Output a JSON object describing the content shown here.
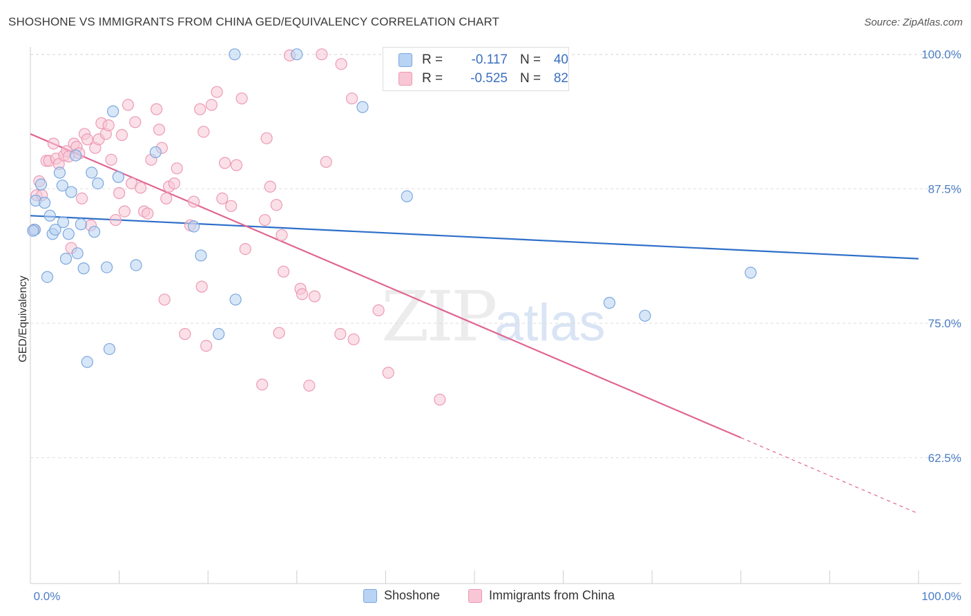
{
  "header": {
    "title": "SHOSHONE VS IMMIGRANTS FROM CHINA GED/EQUIVALENCY CORRELATION CHART",
    "source": "Source: ZipAtlas.com"
  },
  "watermark": {
    "zip": "ZIP",
    "atlas": "atlas"
  },
  "legend": {
    "rows": [
      {
        "r_label": "R =",
        "r_value": "-0.117",
        "n_label": "N =",
        "n_value": "40"
      },
      {
        "r_label": "R =",
        "r_value": "-0.525",
        "n_label": "N =",
        "n_value": "82"
      }
    ]
  },
  "bottom_legend": {
    "series_a": "Shoshone",
    "series_b": "Immigrants from China"
  },
  "colors": {
    "blue_fill": "#b8d3f3",
    "blue_stroke": "#7ba7de",
    "blue_line": "#2e6fc9",
    "pink_fill": "#f8c6d5",
    "pink_stroke": "#ec9ab5",
    "pink_line": "#e06592",
    "grid": "#dddddd",
    "axis_text": "#4a7cc4"
  },
  "chart_data": {
    "type": "scatter",
    "title": "SHOSHONE VS IMMIGRANTS FROM CHINA GED/EQUIVALENCY CORRELATION CHART",
    "xlabel": "",
    "ylabel": "GED/Equivalency",
    "xlim": [
      0,
      100
    ],
    "ylim": [
      50.8,
      101.2
    ],
    "y_ticks": [
      62.5,
      75.0,
      87.5,
      100.0
    ],
    "y_tick_labels": [
      "62.5%",
      "75.0%",
      "87.5%",
      "100.0%"
    ],
    "x_tick_labels": [
      "0.0%",
      "100.0%"
    ],
    "grid": true,
    "legend_position": "top-center",
    "series": [
      {
        "name": "Shoshone",
        "R": -0.117,
        "N": 40,
        "trend": {
          "x": [
            0,
            100
          ],
          "y": [
            85.0,
            81.0
          ],
          "dashed_from": null
        },
        "points": [
          [
            0.5,
            83.7
          ],
          [
            0.6,
            86.4
          ],
          [
            1.2,
            87.9
          ],
          [
            1.6,
            86.2
          ],
          [
            1.9,
            79.3
          ],
          [
            2.2,
            85.0
          ],
          [
            2.5,
            83.3
          ],
          [
            2.8,
            83.7
          ],
          [
            3.3,
            89.0
          ],
          [
            3.6,
            87.8
          ],
          [
            3.7,
            84.4
          ],
          [
            4.0,
            81.0
          ],
          [
            4.3,
            83.3
          ],
          [
            4.6,
            87.2
          ],
          [
            5.1,
            90.6
          ],
          [
            5.3,
            81.5
          ],
          [
            5.7,
            84.2
          ],
          [
            6.0,
            80.1
          ],
          [
            6.4,
            71.4
          ],
          [
            6.9,
            89.0
          ],
          [
            7.2,
            83.5
          ],
          [
            7.6,
            88.0
          ],
          [
            8.6,
            80.2
          ],
          [
            8.9,
            72.6
          ],
          [
            9.3,
            94.7
          ],
          [
            9.9,
            88.6
          ],
          [
            11.9,
            80.4
          ],
          [
            14.1,
            90.9
          ],
          [
            18.4,
            84.0
          ],
          [
            19.2,
            81.3
          ],
          [
            21.2,
            74.0
          ],
          [
            23.0,
            100.0
          ],
          [
            23.1,
            77.2
          ],
          [
            30.0,
            100.0
          ],
          [
            37.4,
            95.1
          ],
          [
            42.4,
            86.8
          ],
          [
            65.2,
            76.9
          ],
          [
            69.2,
            75.7
          ],
          [
            81.1,
            79.7
          ],
          [
            0.3,
            83.6
          ]
        ]
      },
      {
        "name": "Immigrants from China",
        "R": -0.525,
        "N": 82,
        "trend": {
          "x": [
            0,
            100
          ],
          "y": [
            92.6,
            57.3
          ],
          "dashed_from": 80.0
        },
        "points": [
          [
            0.4,
            83.7
          ],
          [
            0.7,
            86.9
          ],
          [
            1.0,
            88.2
          ],
          [
            1.3,
            86.9
          ],
          [
            1.8,
            90.1
          ],
          [
            2.1,
            90.1
          ],
          [
            2.6,
            91.7
          ],
          [
            2.9,
            90.3
          ],
          [
            3.2,
            89.8
          ],
          [
            3.8,
            90.6
          ],
          [
            4.1,
            91.0
          ],
          [
            4.6,
            82.0
          ],
          [
            4.9,
            91.7
          ],
          [
            5.2,
            91.4
          ],
          [
            5.5,
            90.8
          ],
          [
            5.8,
            86.6
          ],
          [
            6.1,
            92.6
          ],
          [
            6.4,
            92.1
          ],
          [
            6.8,
            84.1
          ],
          [
            7.3,
            91.3
          ],
          [
            7.7,
            92.1
          ],
          [
            8.0,
            93.6
          ],
          [
            8.5,
            92.6
          ],
          [
            8.8,
            93.4
          ],
          [
            9.1,
            90.2
          ],
          [
            9.6,
            84.6
          ],
          [
            10.0,
            87.1
          ],
          [
            10.3,
            92.5
          ],
          [
            10.6,
            85.4
          ],
          [
            11.0,
            95.3
          ],
          [
            11.4,
            88.0
          ],
          [
            11.8,
            93.7
          ],
          [
            12.4,
            87.6
          ],
          [
            12.8,
            85.4
          ],
          [
            13.2,
            85.2
          ],
          [
            13.6,
            90.2
          ],
          [
            14.2,
            94.9
          ],
          [
            14.5,
            93.0
          ],
          [
            14.8,
            91.3
          ],
          [
            15.1,
            77.2
          ],
          [
            15.3,
            86.6
          ],
          [
            15.6,
            87.7
          ],
          [
            16.2,
            88.0
          ],
          [
            16.5,
            89.4
          ],
          [
            17.4,
            74.0
          ],
          [
            18.0,
            84.1
          ],
          [
            18.4,
            86.3
          ],
          [
            19.1,
            94.9
          ],
          [
            19.3,
            78.4
          ],
          [
            19.5,
            92.8
          ],
          [
            19.8,
            72.9
          ],
          [
            20.4,
            95.3
          ],
          [
            21.0,
            96.5
          ],
          [
            21.6,
            86.6
          ],
          [
            21.9,
            89.9
          ],
          [
            22.6,
            85.9
          ],
          [
            23.2,
            89.7
          ],
          [
            23.8,
            95.9
          ],
          [
            24.2,
            81.9
          ],
          [
            26.1,
            69.3
          ],
          [
            26.4,
            84.6
          ],
          [
            26.6,
            92.2
          ],
          [
            27.0,
            87.7
          ],
          [
            27.7,
            86.0
          ],
          [
            28.0,
            74.1
          ],
          [
            28.3,
            83.2
          ],
          [
            28.5,
            79.8
          ],
          [
            29.2,
            99.9
          ],
          [
            30.4,
            78.2
          ],
          [
            30.6,
            77.7
          ],
          [
            31.4,
            69.2
          ],
          [
            32.0,
            77.5
          ],
          [
            32.8,
            100.0
          ],
          [
            33.3,
            90.0
          ],
          [
            34.9,
            74.0
          ],
          [
            35.0,
            99.1
          ],
          [
            36.2,
            95.9
          ],
          [
            36.4,
            73.5
          ],
          [
            39.2,
            76.2
          ],
          [
            40.3,
            70.4
          ],
          [
            46.1,
            67.9
          ],
          [
            4.3,
            90.5
          ]
        ]
      }
    ]
  }
}
